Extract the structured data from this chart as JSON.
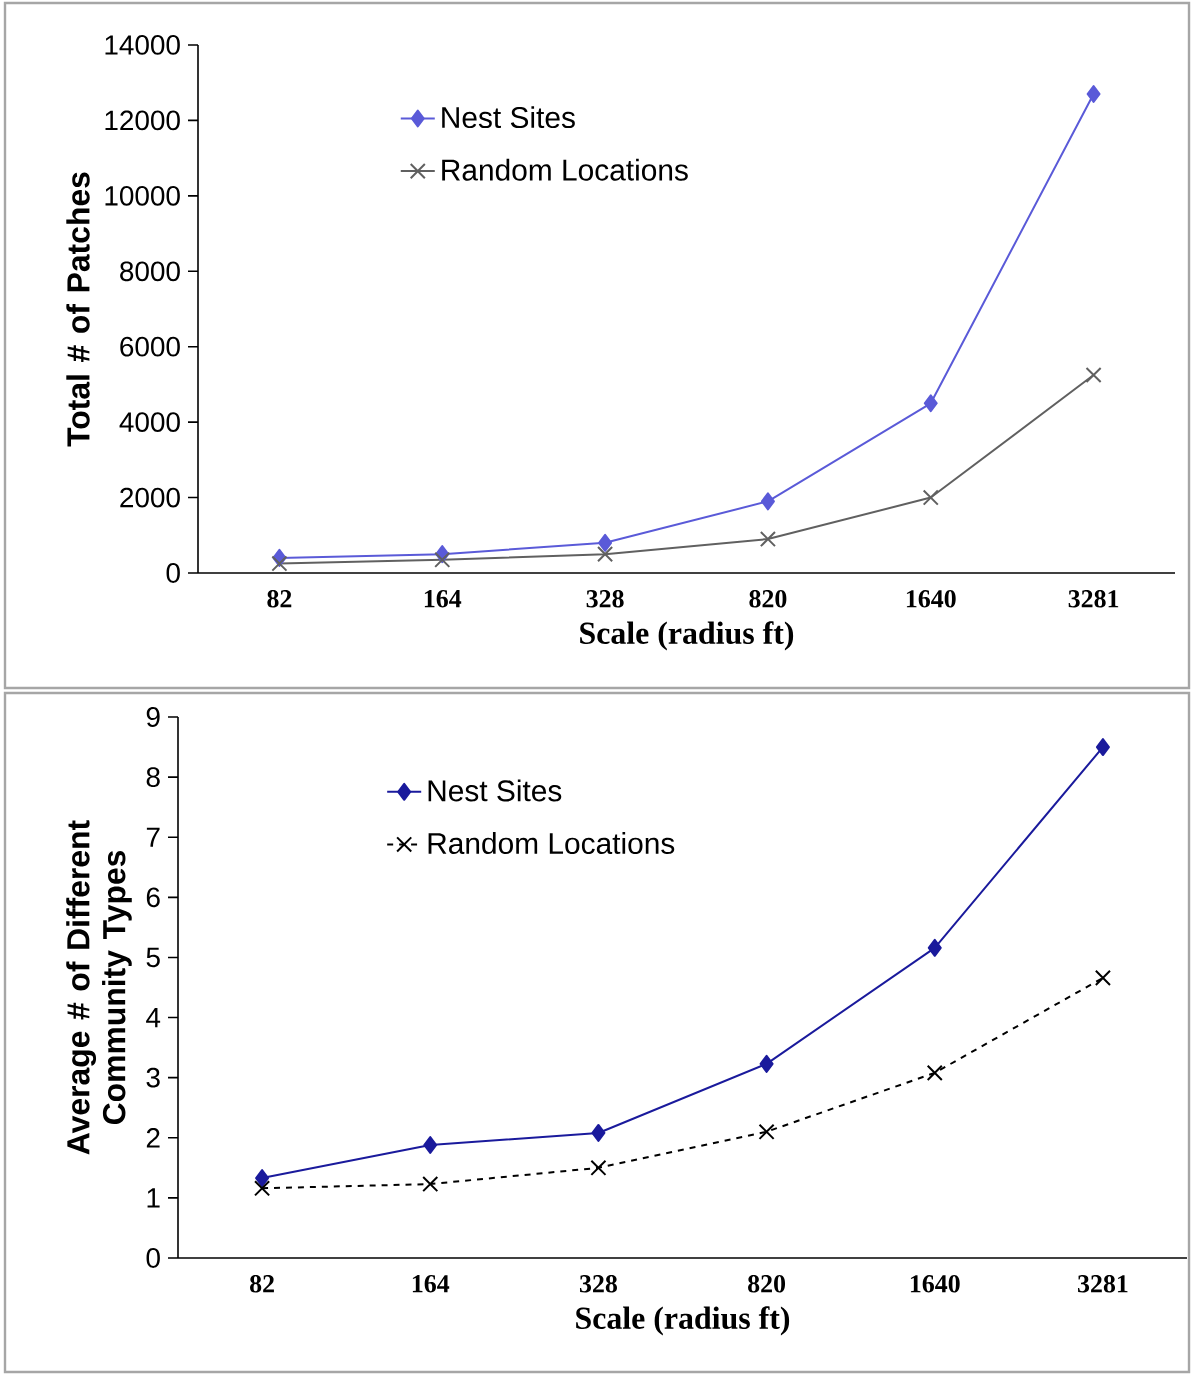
{
  "chart_data": [
    {
      "type": "line",
      "xlabel": "Scale (radius ft)",
      "ylabel": "Total # of Patches",
      "categories": [
        "82",
        "164",
        "328",
        "820",
        "1640",
        "3281"
      ],
      "series": [
        {
          "name": "Nest Sites",
          "color": "#5a5ad8",
          "marker": "diamond",
          "line_style": "solid",
          "values": [
            400,
            500,
            800,
            1900,
            4500,
            12700
          ]
        },
        {
          "name": "Random Locations",
          "color": "#606060",
          "marker": "cross",
          "line_style": "solid",
          "values": [
            250,
            350,
            500,
            900,
            2000,
            5250
          ]
        }
      ],
      "ylim": [
        0,
        14000
      ],
      "yticks": [
        0,
        2000,
        4000,
        6000,
        8000,
        10000,
        12000,
        14000
      ],
      "legend": "top left"
    },
    {
      "type": "line",
      "xlabel": "Scale (radius ft)",
      "ylabel": "Average # of Different Community Types",
      "categories": [
        "82",
        "164",
        "328",
        "820",
        "1640",
        "3281"
      ],
      "series": [
        {
          "name": "Nest Sites",
          "color": "#1a1a9c",
          "marker": "diamond",
          "line_style": "solid",
          "values": [
            1.33,
            1.88,
            2.08,
            3.23,
            5.16,
            8.5
          ]
        },
        {
          "name": "Random Locations",
          "color": "#000000",
          "marker": "cross",
          "line_style": "dashed",
          "values": [
            1.16,
            1.23,
            1.5,
            2.1,
            3.08,
            4.66
          ]
        }
      ],
      "ylim": [
        0,
        9
      ],
      "yticks": [
        0,
        1,
        2,
        3,
        4,
        5,
        6,
        7,
        8,
        9
      ],
      "legend": "top left"
    }
  ]
}
